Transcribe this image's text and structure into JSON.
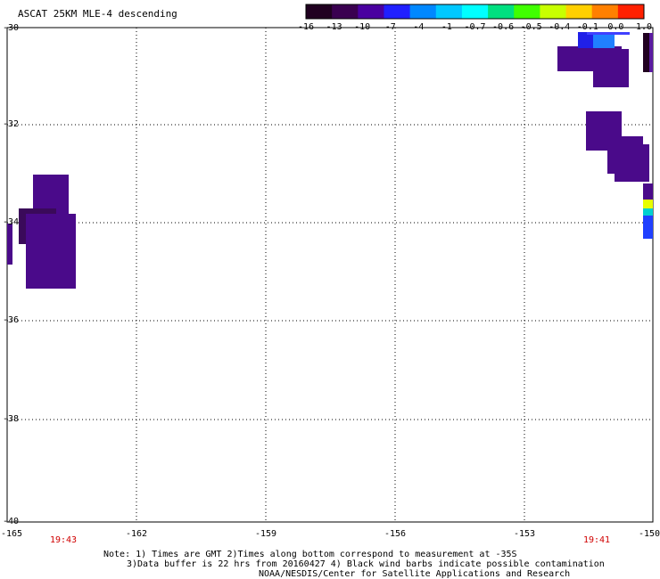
{
  "title": "ASCAT 25KM MLE-4 descending",
  "colorbar": {
    "labels": [
      "-16",
      "-13",
      "-10",
      "-7",
      "-4",
      "-1",
      "-0.7",
      "-0.6",
      "-0.5",
      "-0.4",
      "-0.1",
      "0.0",
      "1.0"
    ],
    "colors": [
      "#200020",
      "#3a0050",
      "#4a00a0",
      "#2020ff",
      "#0088ff",
      "#00c8ff",
      "#00ffff",
      "#00e080",
      "#40ff00",
      "#c8ff00",
      "#ffd000",
      "#ff8000",
      "#ff2000"
    ]
  },
  "axes": {
    "y_labels": [
      "-30",
      "-32",
      "-34",
      "-36",
      "-38",
      "-40"
    ],
    "x_labels": [
      "-165",
      "-162",
      "-159",
      "-156",
      "-153",
      "-150"
    ]
  },
  "times": [
    "19:43",
    "19:41"
  ],
  "notes": [
    "Note: 1) Times are GMT 2)Times along bottom correspond to measurement at -35S",
    "3)Data buffer is 22 hrs from 20160427 4) Black wind barbs indicate possible contamination",
    "NOAA/NESDIS/Center for Satellite Applications and Research"
  ]
}
